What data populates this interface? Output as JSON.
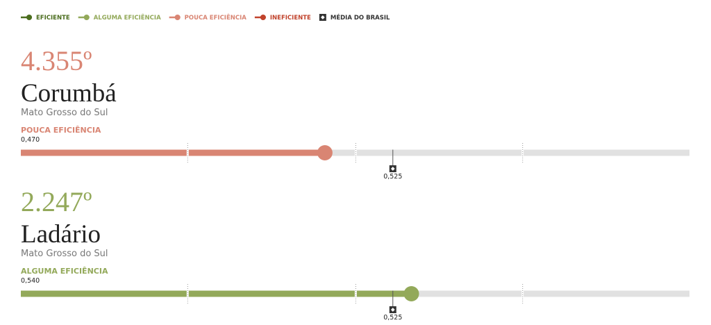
{
  "legend": [
    {
      "label": "EFICIENTE",
      "color": "#4b6d1e"
    },
    {
      "label": "ALGUMA EFICIÊNCIA",
      "color": "#93a95a"
    },
    {
      "label": "POUCA EFICIÊNCIA",
      "color": "#d98573"
    },
    {
      "label": "INEFICIENTE",
      "color": "#c1432c"
    },
    {
      "label": "MÉDIA DO BRASIL",
      "color": "#333333"
    }
  ],
  "xlim": [
    0.224,
    0.765
  ],
  "dividers": [
    0.359,
    0.495,
    0.63
  ],
  "brazil_average": {
    "value": 0.525,
    "label": "0,525"
  },
  "cities": [
    {
      "rank": "4.355º",
      "name": "Corumbá",
      "state": "Mato Grosso do Sul",
      "category": "POUCA EFICIÊNCIA",
      "color": "#d98573",
      "score": {
        "value": 0.47,
        "label": "0,470"
      }
    },
    {
      "rank": "2.247º",
      "name": "Ladário",
      "state": "Mato Grosso do Sul",
      "category": "ALGUMA EFICIÊNCIA",
      "color": "#93a95a",
      "score": {
        "value": 0.54,
        "label": "0,540"
      }
    }
  ]
}
